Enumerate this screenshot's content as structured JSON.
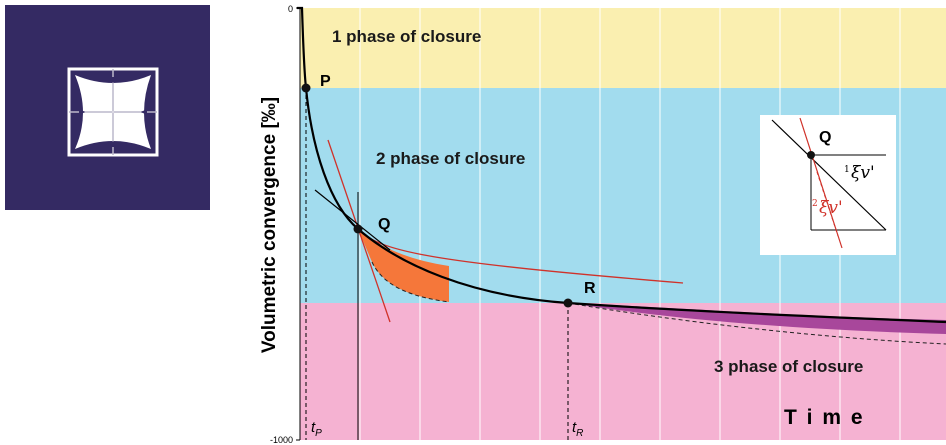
{
  "diagram": {
    "y_axis_label": "Volumetric convergence [‰]",
    "y_tick_top": "0",
    "y_tick_bottom": "-1000",
    "x_axis_label": "T i m e",
    "phases": {
      "phase1": "1 phase of closure",
      "phase2": "2 phase of closure",
      "phase3": "3 phase of closure"
    },
    "points": {
      "p": "P",
      "q": "Q",
      "r": "R"
    },
    "time_marks": {
      "tp_main": "t",
      "tp_sub": "P",
      "tr_main": "t",
      "tr_sub": "R"
    },
    "inset": {
      "point": "Q",
      "rate1_prefix": "1",
      "rate1_symbol": "ξv'",
      "rate2_prefix": "2",
      "rate2_symbol": "ξv'"
    },
    "colors": {
      "phase1": "#faefb0",
      "phase2": "#a2dcee",
      "phase3": "#f5b2d2",
      "icon_bg": "#342a63",
      "orange_fill": "#f5773a",
      "purple_fill": "#a8479b",
      "tangent_red": "#d0322a"
    }
  }
}
